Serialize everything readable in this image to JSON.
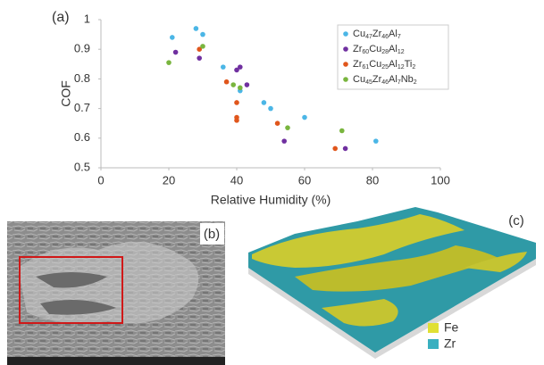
{
  "chart_data": {
    "type": "scatter",
    "panel_label": "(a)",
    "x_label": "Relative Humidity (%)",
    "y_label": "COF",
    "xlim": [
      0,
      100
    ],
    "xticks": [
      0,
      20,
      40,
      60,
      80,
      100
    ],
    "ylim": [
      0.5,
      1
    ],
    "yticks": [
      0.5,
      0.6,
      0.7,
      0.8,
      0.9,
      1
    ],
    "legend": "upper right",
    "series": [
      {
        "name": "Cu47Zr46Al7",
        "color": "#4bb6e6",
        "x": [
          21,
          28,
          30,
          36,
          41,
          48,
          50,
          60,
          81
        ],
        "values": [
          0.94,
          0.97,
          0.95,
          0.84,
          0.76,
          0.72,
          0.7,
          0.67,
          0.59
        ]
      },
      {
        "name": "Zr60Cu28Al12",
        "color": "#7030a0",
        "x": [
          22,
          29,
          40,
          41,
          43,
          54,
          72
        ],
        "values": [
          0.89,
          0.87,
          0.83,
          0.84,
          0.78,
          0.59,
          0.565
        ]
      },
      {
        "name": "Zr61Cu25Al12Ti2",
        "color": "#e0561c",
        "x": [
          29,
          37,
          40,
          40,
          40,
          52,
          69
        ],
        "values": [
          0.9,
          0.79,
          0.72,
          0.67,
          0.66,
          0.65,
          0.565
        ]
      },
      {
        "name": "Cu45Zr46Al7Nb2",
        "color": "#79b53e",
        "x": [
          20,
          30,
          39,
          41,
          55,
          71
        ],
        "values": [
          0.855,
          0.91,
          0.78,
          0.77,
          0.635,
          0.625
        ]
      }
    ]
  },
  "panels": {
    "b": {
      "label": "(b)"
    },
    "c": {
      "label": "(c)",
      "legend": [
        "Fe",
        "Zr"
      ]
    }
  }
}
